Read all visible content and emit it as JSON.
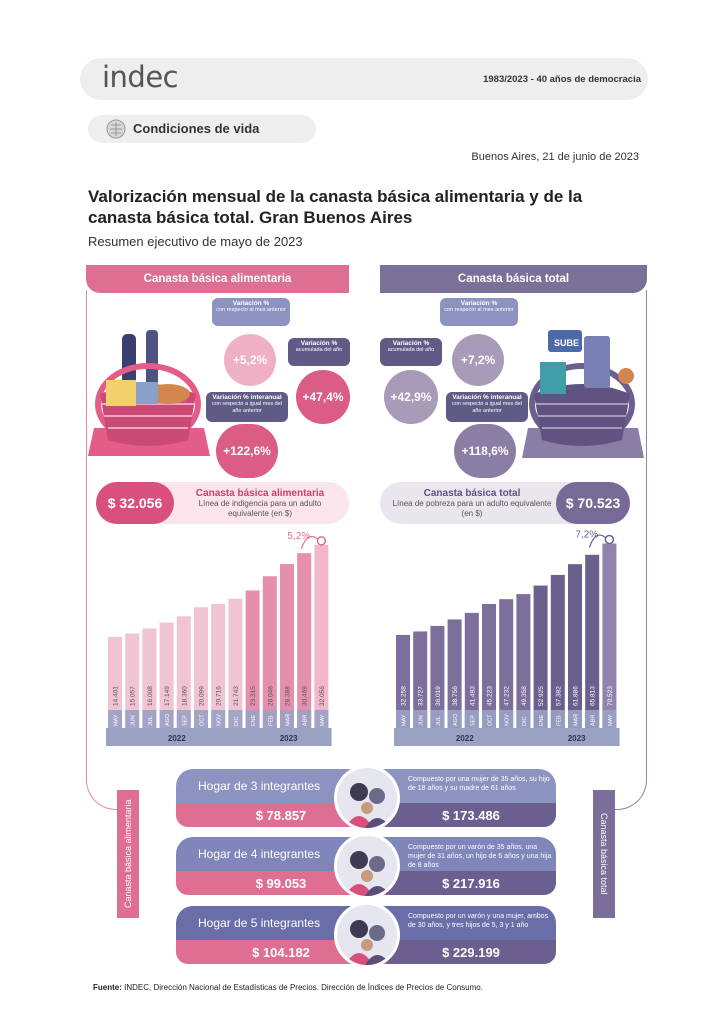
{
  "header": {
    "logo": "indec",
    "tag": "1983/2023 - 40 años de democracia",
    "section": "Condiciones de vida",
    "date": "Buenos Aires, 21 de junio de 2023",
    "title": "Valorización mensual de la canasta básica alimentaria y de la canasta básica total. Gran Buenos Aires",
    "subtitle": "Resumen ejecutivo de mayo de 2023"
  },
  "cba": {
    "header": "Canasta básica alimentaria",
    "var_mensual": {
      "label": "Variación %",
      "desc": "con respecto al mes anterior",
      "value": "+5,2%"
    },
    "var_acum": {
      "label": "Variación %",
      "desc": "acumulada del año",
      "value": "+47,4%"
    },
    "var_interanual": {
      "label": "Variación % interanual",
      "desc": "con respecto a igual mes del año anterior",
      "value": "+122,6%"
    },
    "price": "$ 32.056",
    "band_title": "Canasta básica alimentaria",
    "band_sub": "Línea de indigencia para un adulto equivalente (en $)",
    "last_var": "5,2%"
  },
  "cbt": {
    "header": "Canasta básica total",
    "var_mensual": {
      "label": "Variación %",
      "desc": "con respecto al mes anterior",
      "value": "+7,2%"
    },
    "var_acum": {
      "label": "Variación %",
      "desc": "acumulada del año",
      "value": "+42,9%"
    },
    "var_interanual": {
      "label": "Variación % interanual",
      "desc": "con respecto a igual mes del año anterior",
      "value": "+118,6%"
    },
    "price": "$ 70.523",
    "band_title": "Canasta básica total",
    "band_sub": "Línea de pobreza para un adulto equivalente (en $)",
    "last_var": "7,2%"
  },
  "chart_data": [
    {
      "type": "bar",
      "categories": [
        "MAY",
        "JUN",
        "JUL",
        "AGO",
        "SEP",
        "OCT",
        "NOV",
        "DIC",
        "ENE",
        "FEB",
        "MAR",
        "ABR",
        "MAY"
      ],
      "year_groups": [
        {
          "label": "2022",
          "count": 8
        },
        {
          "label": "2023",
          "count": 5
        }
      ],
      "values": [
        14401,
        15057,
        16008,
        17149,
        18360,
        20099,
        20716,
        21743,
        23315,
        26046,
        28388,
        30469,
        32056
      ],
      "value_labels": [
        "14.401",
        "15.057",
        "16.008",
        "17.149",
        "18.360",
        "20.099",
        "20.716",
        "21.743",
        "23.315",
        "26.046",
        "28.388",
        "30.469",
        "32.056"
      ],
      "colors": {
        "bars": "#f1c4d4",
        "bars_2023": "#e58fad",
        "last": "#f3b7cb",
        "axis": "#9aa2c4"
      },
      "ylim": [
        0,
        33000
      ]
    },
    {
      "type": "bar",
      "categories": [
        "MAY",
        "JUN",
        "JUL",
        "AGO",
        "SEP",
        "OCT",
        "NOV",
        "DIC",
        "ENE",
        "FEB",
        "MAR",
        "ABR",
        "MAY"
      ],
      "year_groups": [
        {
          "label": "2022",
          "count": 8
        },
        {
          "label": "2023",
          "count": 5
        }
      ],
      "values": [
        32258,
        33727,
        36019,
        38756,
        41493,
        45223,
        47232,
        49358,
        52925,
        57382,
        61886,
        65813,
        70523
      ],
      "value_labels": [
        "32.258",
        "33.727",
        "36.019",
        "38.756",
        "41.493",
        "45.223",
        "47.232",
        "49.358",
        "52.925",
        "57.382",
        "61.886",
        "65.813",
        "70.523"
      ],
      "colors": {
        "bars": "#7d6f9c",
        "bars_2023": "#6b5f8e",
        "last": "#8f84ad",
        "axis": "#9aa2c4"
      },
      "ylim": [
        0,
        72000
      ]
    }
  ],
  "households": [
    {
      "name": "Hogar de 3 integrantes",
      "desc": "Compuesto por una mujer de 35 años, su hijo de 18 años y su madre de 61 años",
      "cba": "$ 78.857",
      "cbt": "$ 173.486",
      "color": "#8d93c1"
    },
    {
      "name": "Hogar de 4 integrantes",
      "desc": "Compuesto por un varón de 35 años, una mujer de 31 años, un hijo de 6 años y una hija de 8 años",
      "cba": "$ 99.053",
      "cbt": "$ 217.916",
      "color": "#7f86b9"
    },
    {
      "name": "Hogar de 5 integrantes",
      "desc": "Compuesto por un varón y una mujer, ambos de 30 años, y tres hijos de 5, 3 y 1 año",
      "cba": "$ 104.182",
      "cbt": "$ 229.199",
      "color": "#6a6ea8"
    }
  ],
  "side": {
    "left": "Canasta básica alimentaria",
    "right": "Canasta básica total"
  },
  "footer": {
    "bold": "Fuente:",
    "text": " INDEC, Dirección Nacional de Estadísticas de Precios. Dirección de Índices de Precios de Consumo."
  }
}
